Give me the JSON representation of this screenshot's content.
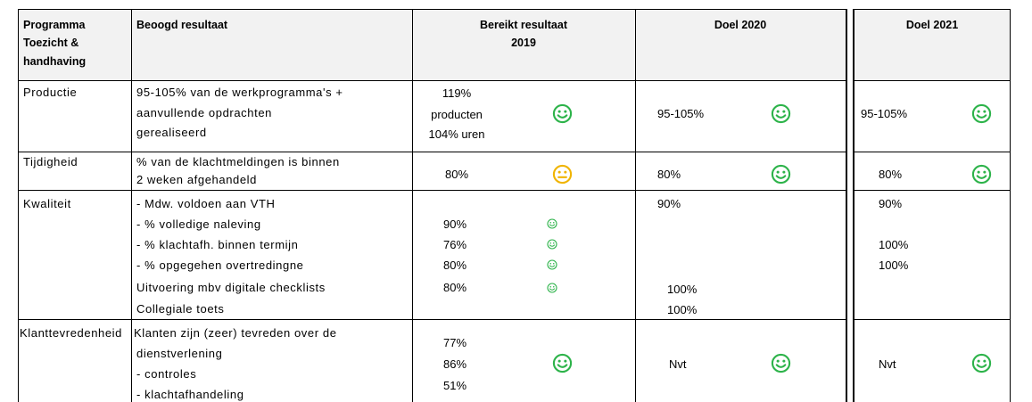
{
  "header": {
    "program": [
      "Programma",
      "Toezicht &",
      "handhaving"
    ],
    "result": "Beoogd resultaat",
    "achieved": [
      "Bereikt resultaat",
      "2019"
    ],
    "goal_2020": "Doel 2020",
    "goal_2021": "Doel 2021"
  },
  "rows": [
    {
      "label": "Productie",
      "result": [
        "95-105% van de werkprogramma's +",
        "aanvullende opdrachten",
        "gerealiseerd"
      ],
      "achieved": [
        "119%",
        "producten",
        "104% uren"
      ],
      "goal_2020": "95-105%",
      "goal_2021": "95-105%"
    },
    {
      "label": "Tijdigheid",
      "result": [
        "% van de klachtmeldingen is binnen",
        "2 weken afgehandeld"
      ],
      "achieved": "80%",
      "goal_2020": "80%",
      "goal_2021": "80%"
    },
    {
      "label": "Kwaliteit",
      "lines": [
        {
          "text": " - Mdw. voldoen aan VTH",
          "goal_2020": "90%",
          "goal_2021": "90%"
        },
        {
          "text": " - % volledige naleving",
          "achieved": "90%"
        },
        {
          "text": " - % klachtafh. binnen termijn",
          "achieved": "76%",
          "goal_2021": "100%"
        },
        {
          "text": " - % opgegehen overtredingne",
          "achieved": "80%",
          "goal_2021": "100%"
        },
        {
          "text": "Uitvoering mbv digitale checklists",
          "achieved": "80%",
          "goal_2020": "100%"
        },
        {
          "text": "Collegiale toets",
          "goal_2020": "100%"
        }
      ]
    },
    {
      "label": "Klanttevredenheid",
      "result": [
        "Klanten zijn (zeer) tevreden over de",
        "dienstverlening",
        " - controles",
        " - klachtafhandeling"
      ],
      "achieved": [
        "77%",
        "86%",
        "51%"
      ],
      "goal_2020": "Nvt",
      "goal_2021": "Nvt"
    }
  ]
}
